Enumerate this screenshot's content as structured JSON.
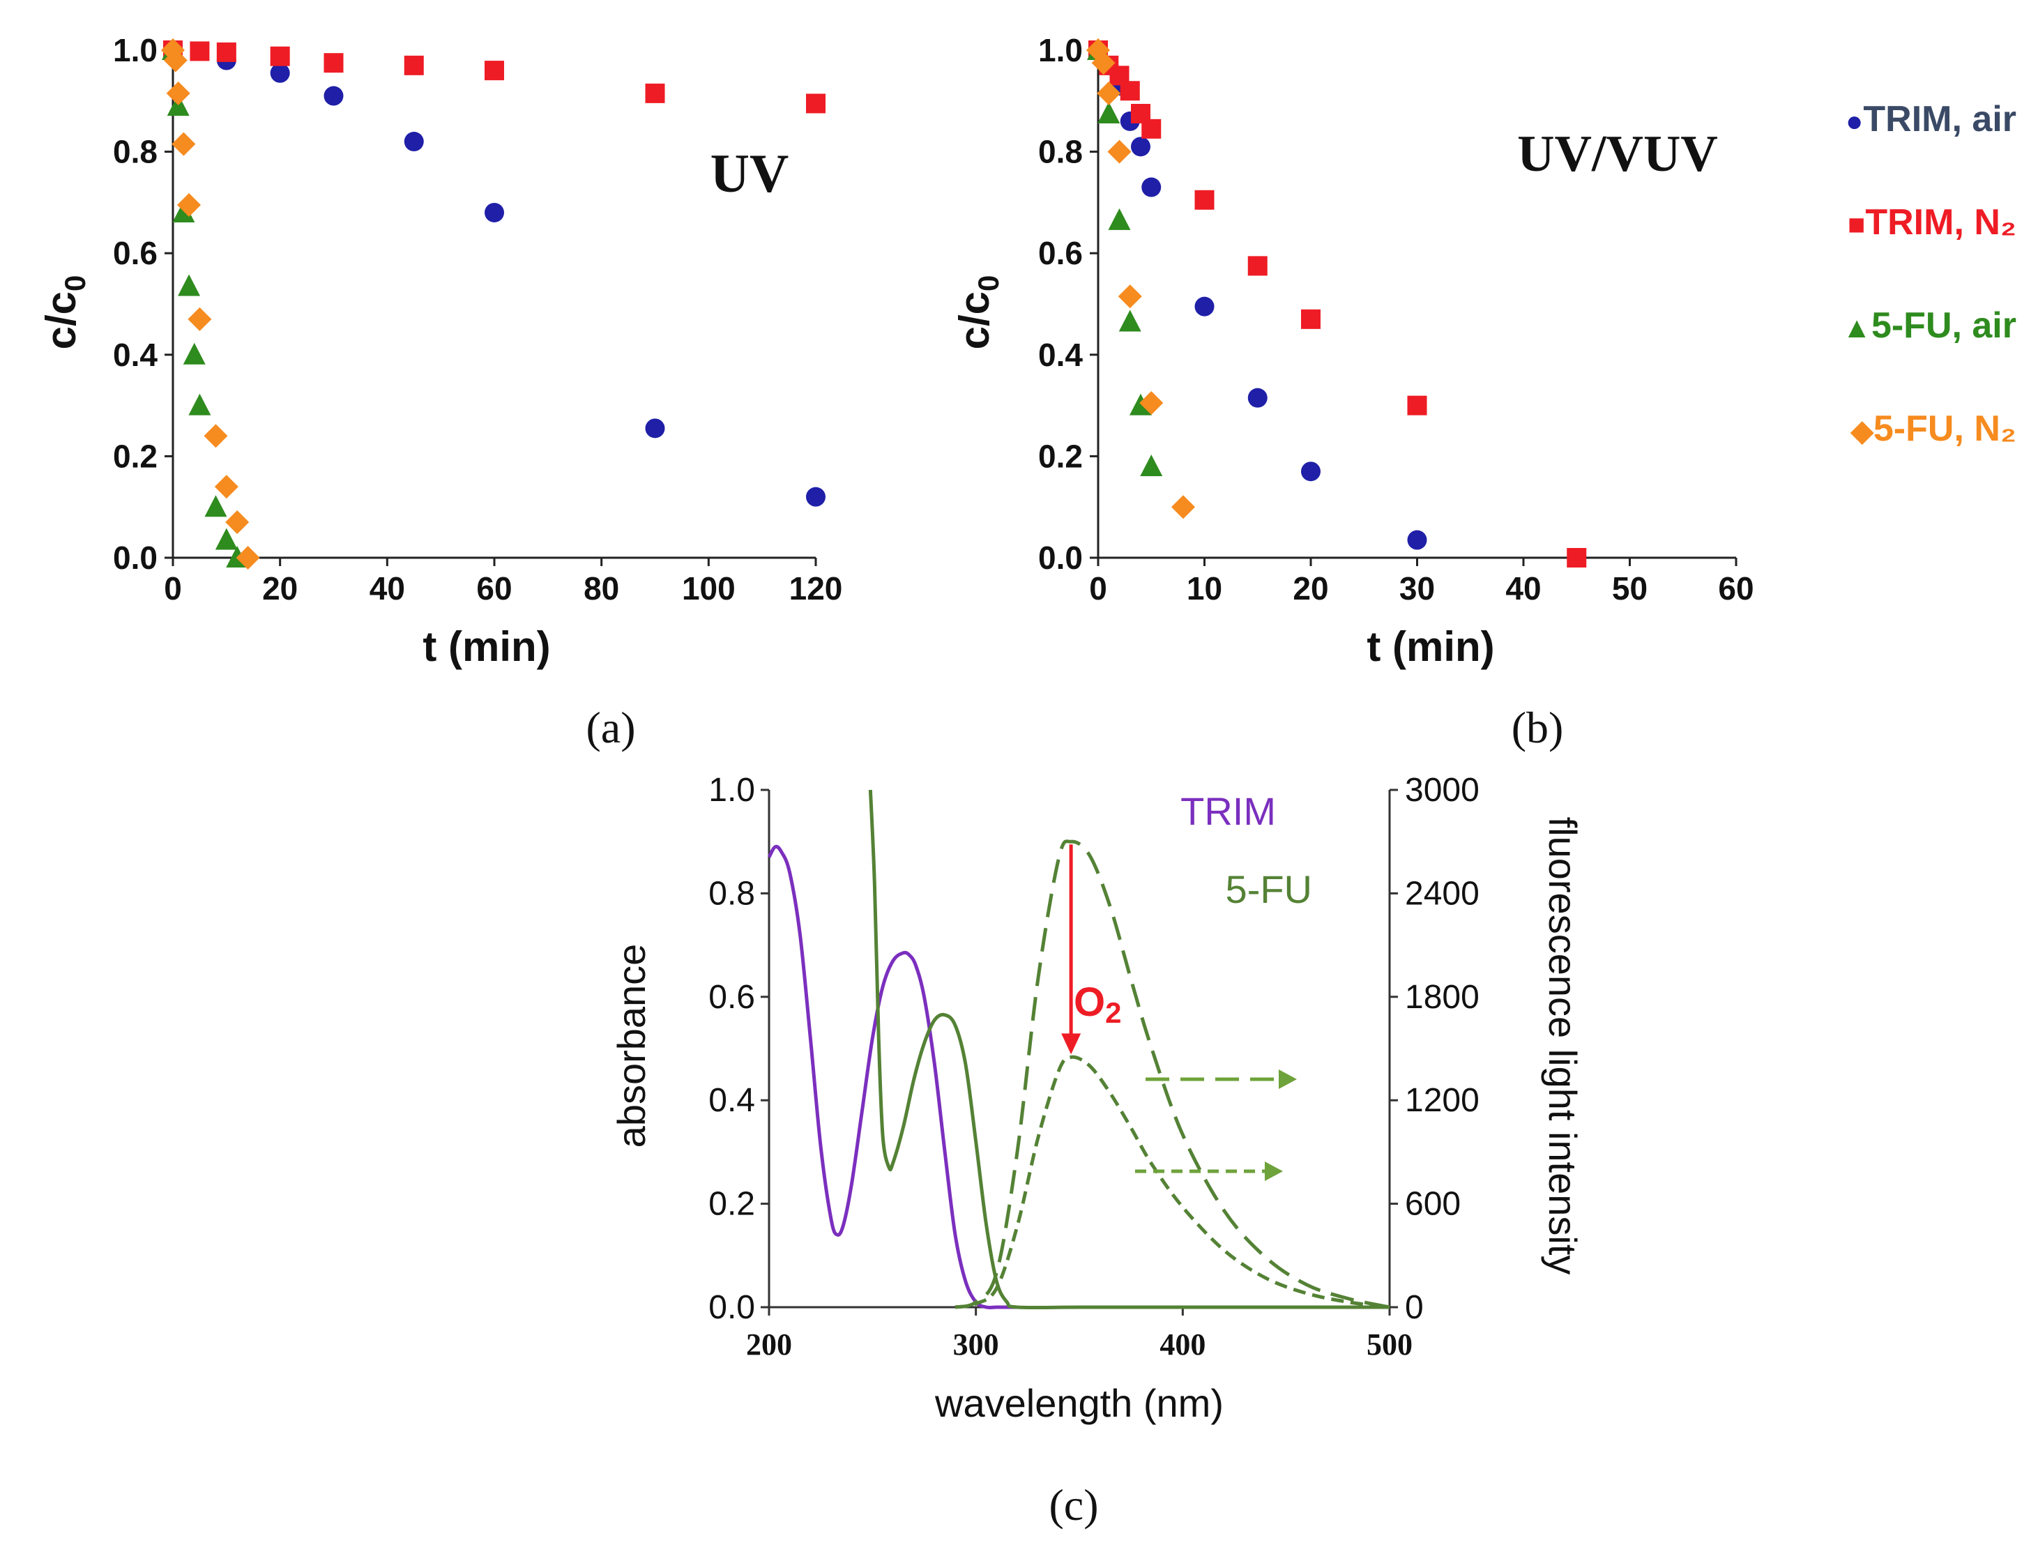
{
  "chart_data": [
    {
      "id": "a",
      "type": "scatter",
      "panel_label": "(a)",
      "annotation": "UV",
      "xlabel": "t (min)",
      "ylabel": "c/c0",
      "ylabel_main": "c/c",
      "ylabel_sub": "0",
      "xlim": [
        0,
        120
      ],
      "ylim": [
        0,
        1
      ],
      "xticks": [
        0,
        20,
        40,
        60,
        80,
        100,
        120
      ],
      "yticks": [
        0.0,
        0.2,
        0.4,
        0.6,
        0.8,
        1.0
      ],
      "ytick_labels": [
        "0.0",
        "0.2",
        "0.4",
        "0.6",
        "0.8",
        "1.0"
      ],
      "series": [
        {
          "key": "trim_air",
          "name": "TRIM, air",
          "marker": "circle",
          "color": "#1f1fa8",
          "x": [
            0,
            10,
            20,
            30,
            45,
            60,
            90,
            120
          ],
          "y": [
            1.0,
            0.98,
            0.955,
            0.91,
            0.82,
            0.68,
            0.255,
            0.12
          ]
        },
        {
          "key": "trim_n2",
          "name": "TRIM, N2",
          "marker": "square",
          "color": "#ee1c25",
          "x": [
            0,
            5,
            10,
            20,
            30,
            45,
            60,
            90,
            120
          ],
          "y": [
            1.0,
            0.998,
            0.996,
            0.988,
            0.975,
            0.97,
            0.96,
            0.915,
            0.895
          ]
        },
        {
          "key": "fu_air",
          "name": "5-FU, air",
          "marker": "triangle",
          "color": "#2e8b1e",
          "x": [
            0,
            1,
            2,
            3,
            4,
            5,
            8,
            10,
            12
          ],
          "y": [
            1.0,
            0.89,
            0.68,
            0.535,
            0.4,
            0.3,
            0.1,
            0.035,
            0.0
          ]
        },
        {
          "key": "fu_n2",
          "name": "5-FU, N2",
          "marker": "diamond",
          "color": "#f68b1f",
          "x": [
            0,
            0.5,
            1,
            2,
            3,
            5,
            8,
            10,
            12,
            14
          ],
          "y": [
            1.0,
            0.98,
            0.915,
            0.815,
            0.695,
            0.47,
            0.24,
            0.14,
            0.07,
            0.0
          ]
        }
      ]
    },
    {
      "id": "b",
      "type": "scatter",
      "panel_label": "(b)",
      "annotation": "UV/VUV",
      "xlabel": "t (min)",
      "ylabel": "c/c0",
      "ylabel_main": "c/c",
      "ylabel_sub": "0",
      "xlim": [
        0,
        60
      ],
      "ylim": [
        0,
        1
      ],
      "xticks": [
        0,
        10,
        20,
        30,
        40,
        50,
        60
      ],
      "yticks": [
        0.0,
        0.2,
        0.4,
        0.6,
        0.8,
        1.0
      ],
      "ytick_labels": [
        "0.0",
        "0.2",
        "0.4",
        "0.6",
        "0.8",
        "1.0"
      ],
      "series": [
        {
          "key": "trim_air",
          "name": "TRIM, air",
          "marker": "circle",
          "color": "#1f1fa8",
          "x": [
            0,
            1,
            2,
            3,
            4,
            5,
            10,
            15,
            20,
            30
          ],
          "y": [
            1.0,
            0.97,
            0.93,
            0.86,
            0.81,
            0.73,
            0.495,
            0.315,
            0.17,
            0.035
          ]
        },
        {
          "key": "trim_n2",
          "name": "TRIM, N2",
          "marker": "square",
          "color": "#ee1c25",
          "x": [
            0,
            1,
            2,
            3,
            4,
            5,
            10,
            15,
            20,
            30,
            45
          ],
          "y": [
            1.0,
            0.97,
            0.95,
            0.92,
            0.875,
            0.845,
            0.705,
            0.575,
            0.47,
            0.3,
            0.0
          ]
        },
        {
          "key": "fu_air",
          "name": "5-FU, air",
          "marker": "triangle",
          "color": "#2e8b1e",
          "x": [
            0,
            1,
            2,
            3,
            4,
            5
          ],
          "y": [
            1.0,
            0.875,
            0.665,
            0.465,
            0.3,
            0.18
          ]
        },
        {
          "key": "fu_n2",
          "name": "5-FU, N2",
          "marker": "diamond",
          "color": "#f68b1f",
          "x": [
            0,
            0.5,
            1,
            2,
            3,
            5,
            8
          ],
          "y": [
            1.0,
            0.975,
            0.915,
            0.8,
            0.515,
            0.305,
            0.1
          ]
        }
      ]
    },
    {
      "id": "c",
      "type": "line",
      "panel_label": "(c)",
      "xlabel": "wavelength (nm)",
      "ylabel": "absorbance",
      "ylabel_right": "fluorescence light intensity",
      "xlim": [
        200,
        500
      ],
      "ylim": [
        0,
        1
      ],
      "ylim_right": [
        0,
        3000
      ],
      "xticks": [
        200,
        300,
        400,
        500
      ],
      "yticks": [
        0.0,
        0.2,
        0.4,
        0.6,
        0.8,
        1.0
      ],
      "ytick_labels": [
        "0.0",
        "0.2",
        "0.4",
        "0.6",
        "0.8",
        "1.0"
      ],
      "yticks_right": [
        0,
        600,
        1200,
        1800,
        2400,
        3000
      ],
      "annotation": {
        "text_main": "O",
        "text_sub": "2",
        "text": "O2",
        "color": "#ee1c25"
      },
      "series": [
        {
          "key": "trim_abs",
          "name": "TRIM",
          "axis": "left",
          "style": "solid",
          "color": "#7b2fbe",
          "x": [
            200,
            203,
            206,
            210,
            215,
            220,
            225,
            230,
            233,
            236,
            240,
            245,
            250,
            255,
            260,
            265,
            268,
            271,
            275,
            280,
            285,
            290,
            295,
            300,
            305,
            310,
            320
          ],
          "y": [
            0.87,
            0.89,
            0.88,
            0.84,
            0.72,
            0.52,
            0.31,
            0.17,
            0.14,
            0.16,
            0.24,
            0.38,
            0.52,
            0.62,
            0.67,
            0.685,
            0.68,
            0.66,
            0.6,
            0.47,
            0.3,
            0.14,
            0.05,
            0.01,
            0.0,
            0.0,
            0.0
          ]
        },
        {
          "key": "fu_abs",
          "name": "5-FU",
          "axis": "left",
          "style": "solid",
          "color": "#548235",
          "x": [
            249,
            251,
            253,
            255,
            258,
            260,
            265,
            270,
            275,
            280,
            285,
            290,
            295,
            300,
            305,
            310,
            315,
            320,
            350,
            400,
            450,
            500
          ],
          "y": [
            1.0,
            0.82,
            0.52,
            0.33,
            0.27,
            0.28,
            0.35,
            0.44,
            0.51,
            0.555,
            0.565,
            0.545,
            0.47,
            0.32,
            0.16,
            0.05,
            0.01,
            0.0,
            0.0,
            0.0,
            0.0,
            0.0
          ]
        },
        {
          "key": "fu_fl_n2",
          "name": "5-FU fluorescence, N2",
          "axis": "right",
          "style": "long-dash",
          "color": "#548235",
          "x": [
            290,
            300,
            310,
            320,
            330,
            340,
            346,
            355,
            365,
            375,
            385,
            400,
            420,
            440,
            460,
            480,
            500
          ],
          "y": [
            0,
            30,
            200,
            900,
            1900,
            2600,
            2700,
            2620,
            2320,
            1900,
            1500,
            1000,
            560,
            290,
            130,
            50,
            0
          ]
        },
        {
          "key": "fu_fl_air",
          "name": "5-FU fluorescence, air",
          "axis": "right",
          "style": "short-dash",
          "color": "#548235",
          "x": [
            290,
            300,
            310,
            320,
            330,
            340,
            346,
            355,
            365,
            375,
            385,
            400,
            420,
            440,
            460,
            480,
            500
          ],
          "y": [
            0,
            20,
            110,
            470,
            980,
            1370,
            1450,
            1400,
            1240,
            1040,
            830,
            580,
            330,
            170,
            80,
            30,
            0
          ]
        }
      ]
    }
  ],
  "legend": {
    "title": "",
    "items": [
      {
        "key": "trim_air",
        "text": "TRIM, air",
        "symbol": "●",
        "color": "#3a4a66"
      },
      {
        "key": "trim_n2",
        "text": "TRIM, N₂",
        "symbol": "■",
        "color": "#ee1c25"
      },
      {
        "key": "fu_air",
        "text": "5-FU, air",
        "symbol": "▲",
        "color": "#2e8b1e"
      },
      {
        "key": "fu_n2",
        "text": "5-FU, N₂",
        "symbol": "◆",
        "color": "#f68b1f"
      }
    ]
  }
}
